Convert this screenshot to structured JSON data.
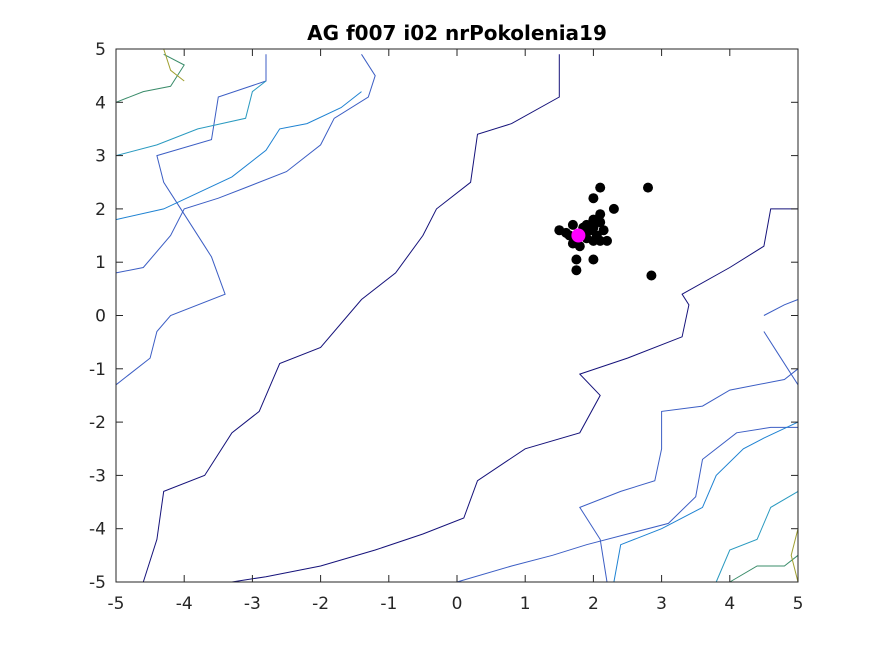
{
  "chart_data": {
    "type": "scatter",
    "title": "AG f007 i02 nrPokolenia19",
    "xlabel": "",
    "ylabel": "",
    "xlim": [
      -5,
      5
    ],
    "ylim": [
      -5,
      5
    ],
    "xticks": [
      "-5",
      "-4",
      "-3",
      "-2",
      "-1",
      "0",
      "1",
      "2",
      "3",
      "4",
      "5"
    ],
    "yticks": [
      "5",
      "4",
      "3",
      "2",
      "1",
      "0",
      "-1",
      "-2",
      "-3",
      "-4",
      "-5"
    ],
    "grid": false,
    "background_contours": {
      "description_color_map": "parula",
      "levels": [
        {
          "color": "#15127a",
          "points": [
            [
              -4.6,
              -5
            ],
            [
              -4.4,
              -4.2
            ],
            [
              -4.3,
              -3.3
            ],
            [
              -3.7,
              -3.0
            ],
            [
              -3.3,
              -2.2
            ],
            [
              -2.9,
              -1.8
            ],
            [
              -2.6,
              -0.9
            ],
            [
              -2.0,
              -0.6
            ],
            [
              -1.4,
              0.3
            ],
            [
              -0.9,
              0.8
            ],
            [
              -0.5,
              1.5
            ],
            [
              -0.3,
              2.0
            ],
            [
              0.2,
              2.5
            ],
            [
              0.3,
              3.4
            ],
            [
              0.8,
              3.6
            ],
            [
              1.5,
              4.1
            ],
            [
              1.5,
              4.9
            ]
          ]
        },
        {
          "color": "#15127a",
          "points": [
            [
              -3.3,
              -5
            ],
            [
              -2.8,
              -4.9
            ],
            [
              -2.0,
              -4.7
            ],
            [
              -1.2,
              -4.4
            ],
            [
              -0.5,
              -4.1
            ],
            [
              0.1,
              -3.8
            ],
            [
              0.3,
              -3.1
            ],
            [
              1.0,
              -2.5
            ],
            [
              1.8,
              -2.2
            ],
            [
              2.1,
              -1.5
            ],
            [
              1.8,
              -1.1
            ],
            [
              2.5,
              -0.8
            ],
            [
              3.3,
              -0.4
            ],
            [
              3.4,
              0.2
            ],
            [
              3.3,
              0.4
            ],
            [
              4.0,
              0.9
            ],
            [
              4.5,
              1.3
            ],
            [
              4.6,
              2.0
            ],
            [
              5,
              2.0
            ]
          ]
        },
        {
          "color": "#3c5ec4",
          "points": [
            [
              -5,
              -1.3
            ],
            [
              -4.5,
              -0.8
            ],
            [
              -4.4,
              -0.3
            ],
            [
              -4.2,
              0.0
            ],
            [
              -3.4,
              0.4
            ],
            [
              -3.6,
              1.1
            ],
            [
              -3.7,
              1.3
            ],
            [
              -4.0,
              1.9
            ],
            [
              -4.3,
              2.5
            ],
            [
              -4.4,
              3.0
            ],
            [
              -3.6,
              3.3
            ],
            [
              -3.5,
              4.1
            ],
            [
              -2.8,
              4.4
            ],
            [
              -2.8,
              4.9
            ]
          ]
        },
        {
          "color": "#3c5ec4",
          "points": [
            [
              -5,
              0.8
            ],
            [
              -4.6,
              0.9
            ],
            [
              -4.2,
              1.5
            ],
            [
              -4.0,
              2.0
            ],
            [
              -3.5,
              2.2
            ],
            [
              -3.1,
              2.4
            ],
            [
              -2.5,
              2.7
            ],
            [
              -2.0,
              3.2
            ],
            [
              -1.8,
              3.7
            ],
            [
              -1.3,
              4.1
            ],
            [
              -1.2,
              4.5
            ],
            [
              -1.4,
              4.9
            ]
          ]
        },
        {
          "color": "#1e82d2",
          "points": [
            [
              -5,
              1.8
            ],
            [
              -4.3,
              2.0
            ],
            [
              -3.8,
              2.3
            ],
            [
              -3.3,
              2.6
            ],
            [
              -2.8,
              3.1
            ],
            [
              -2.6,
              3.5
            ],
            [
              -2.2,
              3.6
            ],
            [
              -1.7,
              3.9
            ],
            [
              -1.4,
              4.2
            ]
          ]
        },
        {
          "color": "#2a9ac0",
          "points": [
            [
              -5,
              3.0
            ],
            [
              -4.4,
              3.2
            ],
            [
              -3.8,
              3.5
            ],
            [
              -3.1,
              3.7
            ],
            [
              -3.0,
              4.2
            ],
            [
              -2.8,
              4.4
            ]
          ]
        },
        {
          "color": "#3a8c6a",
          "points": [
            [
              -5,
              4.0
            ],
            [
              -4.6,
              4.2
            ],
            [
              -4.2,
              4.3
            ],
            [
              -4.0,
              4.7
            ],
            [
              -4.3,
              4.9
            ]
          ]
        },
        {
          "color": "#a0a030",
          "points": [
            [
              -4.3,
              5.0
            ],
            [
              -4.2,
              4.6
            ],
            [
              -4.0,
              4.4
            ]
          ]
        },
        {
          "color": "#3c5ec4",
          "points": [
            [
              2.2,
              -5
            ],
            [
              2.1,
              -4.2
            ],
            [
              1.8,
              -3.6
            ],
            [
              2.4,
              -3.3
            ],
            [
              2.9,
              -3.1
            ],
            [
              3.0,
              -2.5
            ],
            [
              3.0,
              -1.8
            ],
            [
              3.6,
              -1.7
            ],
            [
              4.0,
              -1.4
            ],
            [
              4.8,
              -1.2
            ],
            [
              5,
              -1.0
            ]
          ]
        },
        {
          "color": "#3c5ec4",
          "points": [
            [
              0.0,
              -5
            ],
            [
              0.8,
              -4.7
            ],
            [
              1.4,
              -4.5
            ],
            [
              1.9,
              -4.3
            ],
            [
              2.5,
              -4.1
            ],
            [
              3.1,
              -3.9
            ],
            [
              3.5,
              -3.4
            ],
            [
              3.6,
              -2.7
            ],
            [
              4.1,
              -2.2
            ],
            [
              4.6,
              -2.1
            ],
            [
              5,
              -2.1
            ]
          ]
        },
        {
          "color": "#1e82d2",
          "points": [
            [
              2.3,
              -5
            ],
            [
              2.4,
              -4.3
            ],
            [
              3.0,
              -4.0
            ],
            [
              3.6,
              -3.6
            ],
            [
              3.8,
              -3.0
            ],
            [
              4.2,
              -2.5
            ],
            [
              4.5,
              -2.3
            ],
            [
              5,
              -2.0
            ]
          ]
        },
        {
          "color": "#2a9ac0",
          "points": [
            [
              3.8,
              -5
            ],
            [
              4.0,
              -4.4
            ],
            [
              4.4,
              -4.2
            ],
            [
              4.6,
              -3.6
            ],
            [
              5,
              -3.3
            ]
          ]
        },
        {
          "color": "#3a8c6a",
          "points": [
            [
              4.0,
              -5
            ],
            [
              4.4,
              -4.7
            ],
            [
              4.8,
              -4.7
            ],
            [
              5,
              -4.5
            ]
          ]
        },
        {
          "color": "#a0a030",
          "points": [
            [
              5,
              -4.0
            ],
            [
              4.9,
              -4.5
            ],
            [
              5,
              -5
            ]
          ]
        },
        {
          "color": "#3c5ec4",
          "points": [
            [
              4.5,
              0
            ],
            [
              4.8,
              0.2
            ],
            [
              5,
              0.3
            ]
          ]
        },
        {
          "color": "#3c5ec4",
          "points": [
            [
              4.5,
              -0.3
            ],
            [
              4.7,
              -0.7
            ],
            [
              5,
              -1.3
            ]
          ]
        }
      ]
    },
    "series": [
      {
        "marker_color": "#000000",
        "points": [
          [
            2.1,
            2.4
          ],
          [
            2.8,
            2.4
          ],
          [
            2.0,
            2.2
          ],
          [
            2.3,
            2.0
          ],
          [
            2.0,
            1.8
          ],
          [
            2.1,
            1.9
          ],
          [
            1.7,
            1.7
          ],
          [
            1.9,
            1.7
          ],
          [
            2.0,
            1.75
          ],
          [
            2.1,
            1.75
          ],
          [
            1.5,
            1.6
          ],
          [
            1.6,
            1.55
          ],
          [
            1.65,
            1.5
          ],
          [
            1.85,
            1.55
          ],
          [
            1.95,
            1.6
          ],
          [
            2.05,
            1.5
          ],
          [
            2.15,
            1.6
          ],
          [
            1.9,
            1.45
          ],
          [
            2.0,
            1.4
          ],
          [
            2.1,
            1.4
          ],
          [
            1.7,
            1.35
          ],
          [
            1.8,
            1.3
          ],
          [
            2.2,
            1.4
          ],
          [
            1.75,
            1.05
          ],
          [
            2.0,
            1.05
          ],
          [
            1.75,
            0.85
          ],
          [
            2.85,
            0.75
          ],
          [
            1.85,
            1.65
          ],
          [
            2.0,
            1.65
          ]
        ]
      },
      {
        "marker_color": "#ff00ff",
        "points": [
          [
            1.78,
            1.5
          ]
        ]
      }
    ]
  }
}
